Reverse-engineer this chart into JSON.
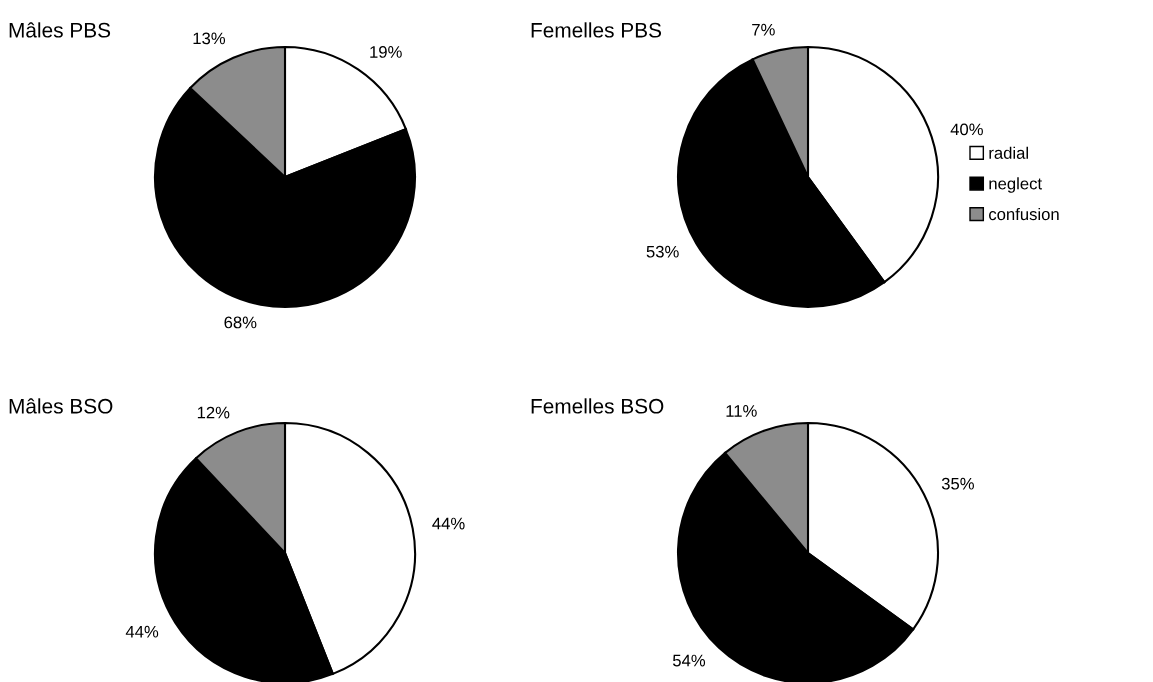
{
  "chart_data": [
    {
      "type": "pie",
      "title": "Mâles PBS",
      "categories": [
        "radial",
        "neglect",
        "confusion"
      ],
      "values": [
        19,
        68,
        13
      ],
      "value_labels": [
        "19%",
        "68%",
        "13%"
      ],
      "colors": [
        "#ffffff",
        "#000000",
        "#8c8c8c"
      ],
      "legend": "right"
    },
    {
      "type": "pie",
      "title": "Femelles PBS",
      "categories": [
        null,
        null,
        null
      ],
      "values": [
        40,
        53,
        7
      ],
      "value_labels": [
        "40%",
        "53%",
        "7%"
      ],
      "colors": [
        "#ffffff",
        "#000000",
        "#8c8c8c"
      ]
    },
    {
      "type": "pie",
      "title": "Mâles BSO",
      "categories": [
        null,
        null,
        null
      ],
      "values": [
        44,
        44,
        12
      ],
      "value_labels": [
        "44%",
        "44%",
        "12%"
      ],
      "colors": [
        "#ffffff",
        "#000000",
        "#8c8c8c"
      ]
    },
    {
      "type": "pie",
      "title": "Femelles BSO",
      "categories": [
        null,
        null,
        null
      ],
      "values": [
        35,
        54,
        11
      ],
      "value_labels": [
        "35%",
        "54%",
        "11%"
      ],
      "colors": [
        "#ffffff",
        "#000000",
        "#8c8c8c"
      ]
    }
  ]
}
